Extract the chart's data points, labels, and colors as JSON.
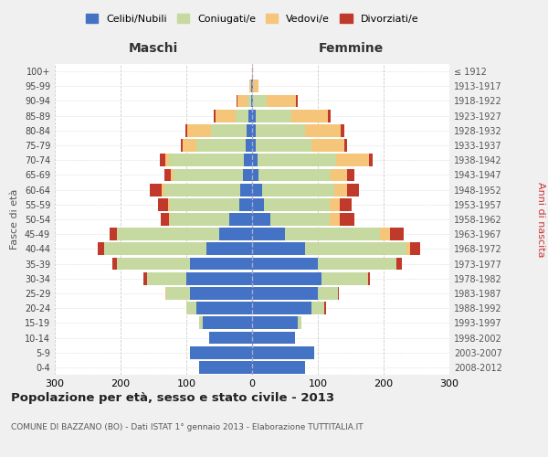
{
  "age_groups": [
    "0-4",
    "5-9",
    "10-14",
    "15-19",
    "20-24",
    "25-29",
    "30-34",
    "35-39",
    "40-44",
    "45-49",
    "50-54",
    "55-59",
    "60-64",
    "65-69",
    "70-74",
    "75-79",
    "80-84",
    "85-89",
    "90-94",
    "95-99",
    "100+"
  ],
  "birth_years": [
    "2008-2012",
    "2003-2007",
    "1998-2002",
    "1993-1997",
    "1988-1992",
    "1983-1987",
    "1978-1982",
    "1973-1977",
    "1968-1972",
    "1963-1967",
    "1958-1962",
    "1953-1957",
    "1948-1952",
    "1943-1947",
    "1938-1942",
    "1933-1937",
    "1928-1932",
    "1923-1927",
    "1918-1922",
    "1913-1917",
    "≤ 1912"
  ],
  "male_celibi": [
    80,
    95,
    65,
    75,
    85,
    95,
    100,
    95,
    70,
    50,
    35,
    20,
    18,
    14,
    12,
    10,
    8,
    5,
    2,
    1,
    0
  ],
  "male_coniugati": [
    0,
    0,
    0,
    5,
    15,
    35,
    60,
    110,
    155,
    155,
    90,
    105,
    115,
    105,
    115,
    75,
    55,
    20,
    5,
    1,
    0
  ],
  "male_vedovi": [
    0,
    0,
    0,
    0,
    0,
    2,
    0,
    0,
    0,
    0,
    2,
    3,
    5,
    5,
    5,
    20,
    35,
    30,
    15,
    2,
    0
  ],
  "male_divorziati": [
    0,
    0,
    0,
    0,
    0,
    0,
    5,
    8,
    10,
    12,
    12,
    15,
    18,
    10,
    8,
    3,
    3,
    3,
    2,
    0,
    0
  ],
  "female_celibi": [
    80,
    95,
    65,
    70,
    90,
    100,
    105,
    100,
    80,
    50,
    28,
    18,
    15,
    10,
    8,
    5,
    5,
    5,
    2,
    1,
    0
  ],
  "female_coniugati": [
    0,
    0,
    0,
    5,
    20,
    30,
    70,
    120,
    155,
    145,
    90,
    100,
    110,
    110,
    120,
    85,
    75,
    55,
    20,
    1,
    0
  ],
  "female_vedovi": [
    0,
    0,
    0,
    0,
    0,
    0,
    2,
    0,
    5,
    15,
    15,
    15,
    20,
    25,
    50,
    50,
    55,
    55,
    45,
    8,
    2
  ],
  "female_divorziati": [
    0,
    0,
    0,
    0,
    2,
    2,
    2,
    8,
    15,
    20,
    22,
    18,
    18,
    10,
    5,
    5,
    5,
    5,
    3,
    0,
    0
  ],
  "color_celibi": "#4472C4",
  "color_coniugati": "#c5d9a0",
  "color_vedovi": "#f5c57a",
  "color_divorziati": "#c0392b",
  "legend_labels": [
    "Celibi/Nubili",
    "Coniugati/e",
    "Vedovi/e",
    "Divorziati/e"
  ],
  "title": "Popolazione per età, sesso e stato civile - 2013",
  "subtitle": "COMUNE DI BAZZANO (BO) - Dati ISTAT 1° gennaio 2013 - Elaborazione TUTTITALIA.IT",
  "ylabel_left": "Fasce di età",
  "ylabel_right": "Anni di nascita",
  "xlabel_left": "Maschi",
  "xlabel_right": "Femmine",
  "xlim": 300,
  "bg_color": "#f0f0f0",
  "plot_bg": "#ffffff"
}
